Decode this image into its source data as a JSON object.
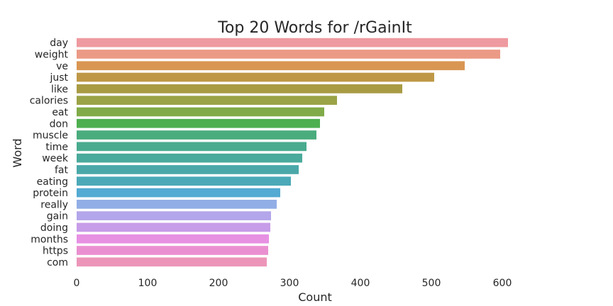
{
  "chart_data": {
    "type": "bar",
    "orientation": "horizontal",
    "title": "Top 20 Words for /rGainIt",
    "xlabel": "Count",
    "ylabel": "Word",
    "xlim": [
      0,
      700
    ],
    "x_ticks": [
      0,
      100,
      200,
      300,
      400,
      500,
      600
    ],
    "grid": false,
    "legend": "none",
    "categories": [
      "day",
      "weight",
      "ve",
      "just",
      "like",
      "calories",
      "eat",
      "don",
      "muscle",
      "time",
      "week",
      "fat",
      "eating",
      "protein",
      "really",
      "gain",
      "doing",
      "months",
      "https",
      "com"
    ],
    "values": [
      608,
      597,
      547,
      504,
      459,
      367,
      349,
      343,
      338,
      324,
      318,
      313,
      302,
      287,
      282,
      274,
      273,
      271,
      270,
      268
    ],
    "colors": [
      "#ee9aa0",
      "#eb9a86",
      "#d99653",
      "#be9846",
      "#a99b43",
      "#9ba347",
      "#80ab48",
      "#4daf4f",
      "#4aac7d",
      "#49ab8e",
      "#4aaa9b",
      "#4ba8a8",
      "#4ca9b8",
      "#53aad2",
      "#92aee6",
      "#b3a6ea",
      "#c79ce8",
      "#e791e3",
      "#ea90d0",
      "#ec95b9"
    ]
  }
}
